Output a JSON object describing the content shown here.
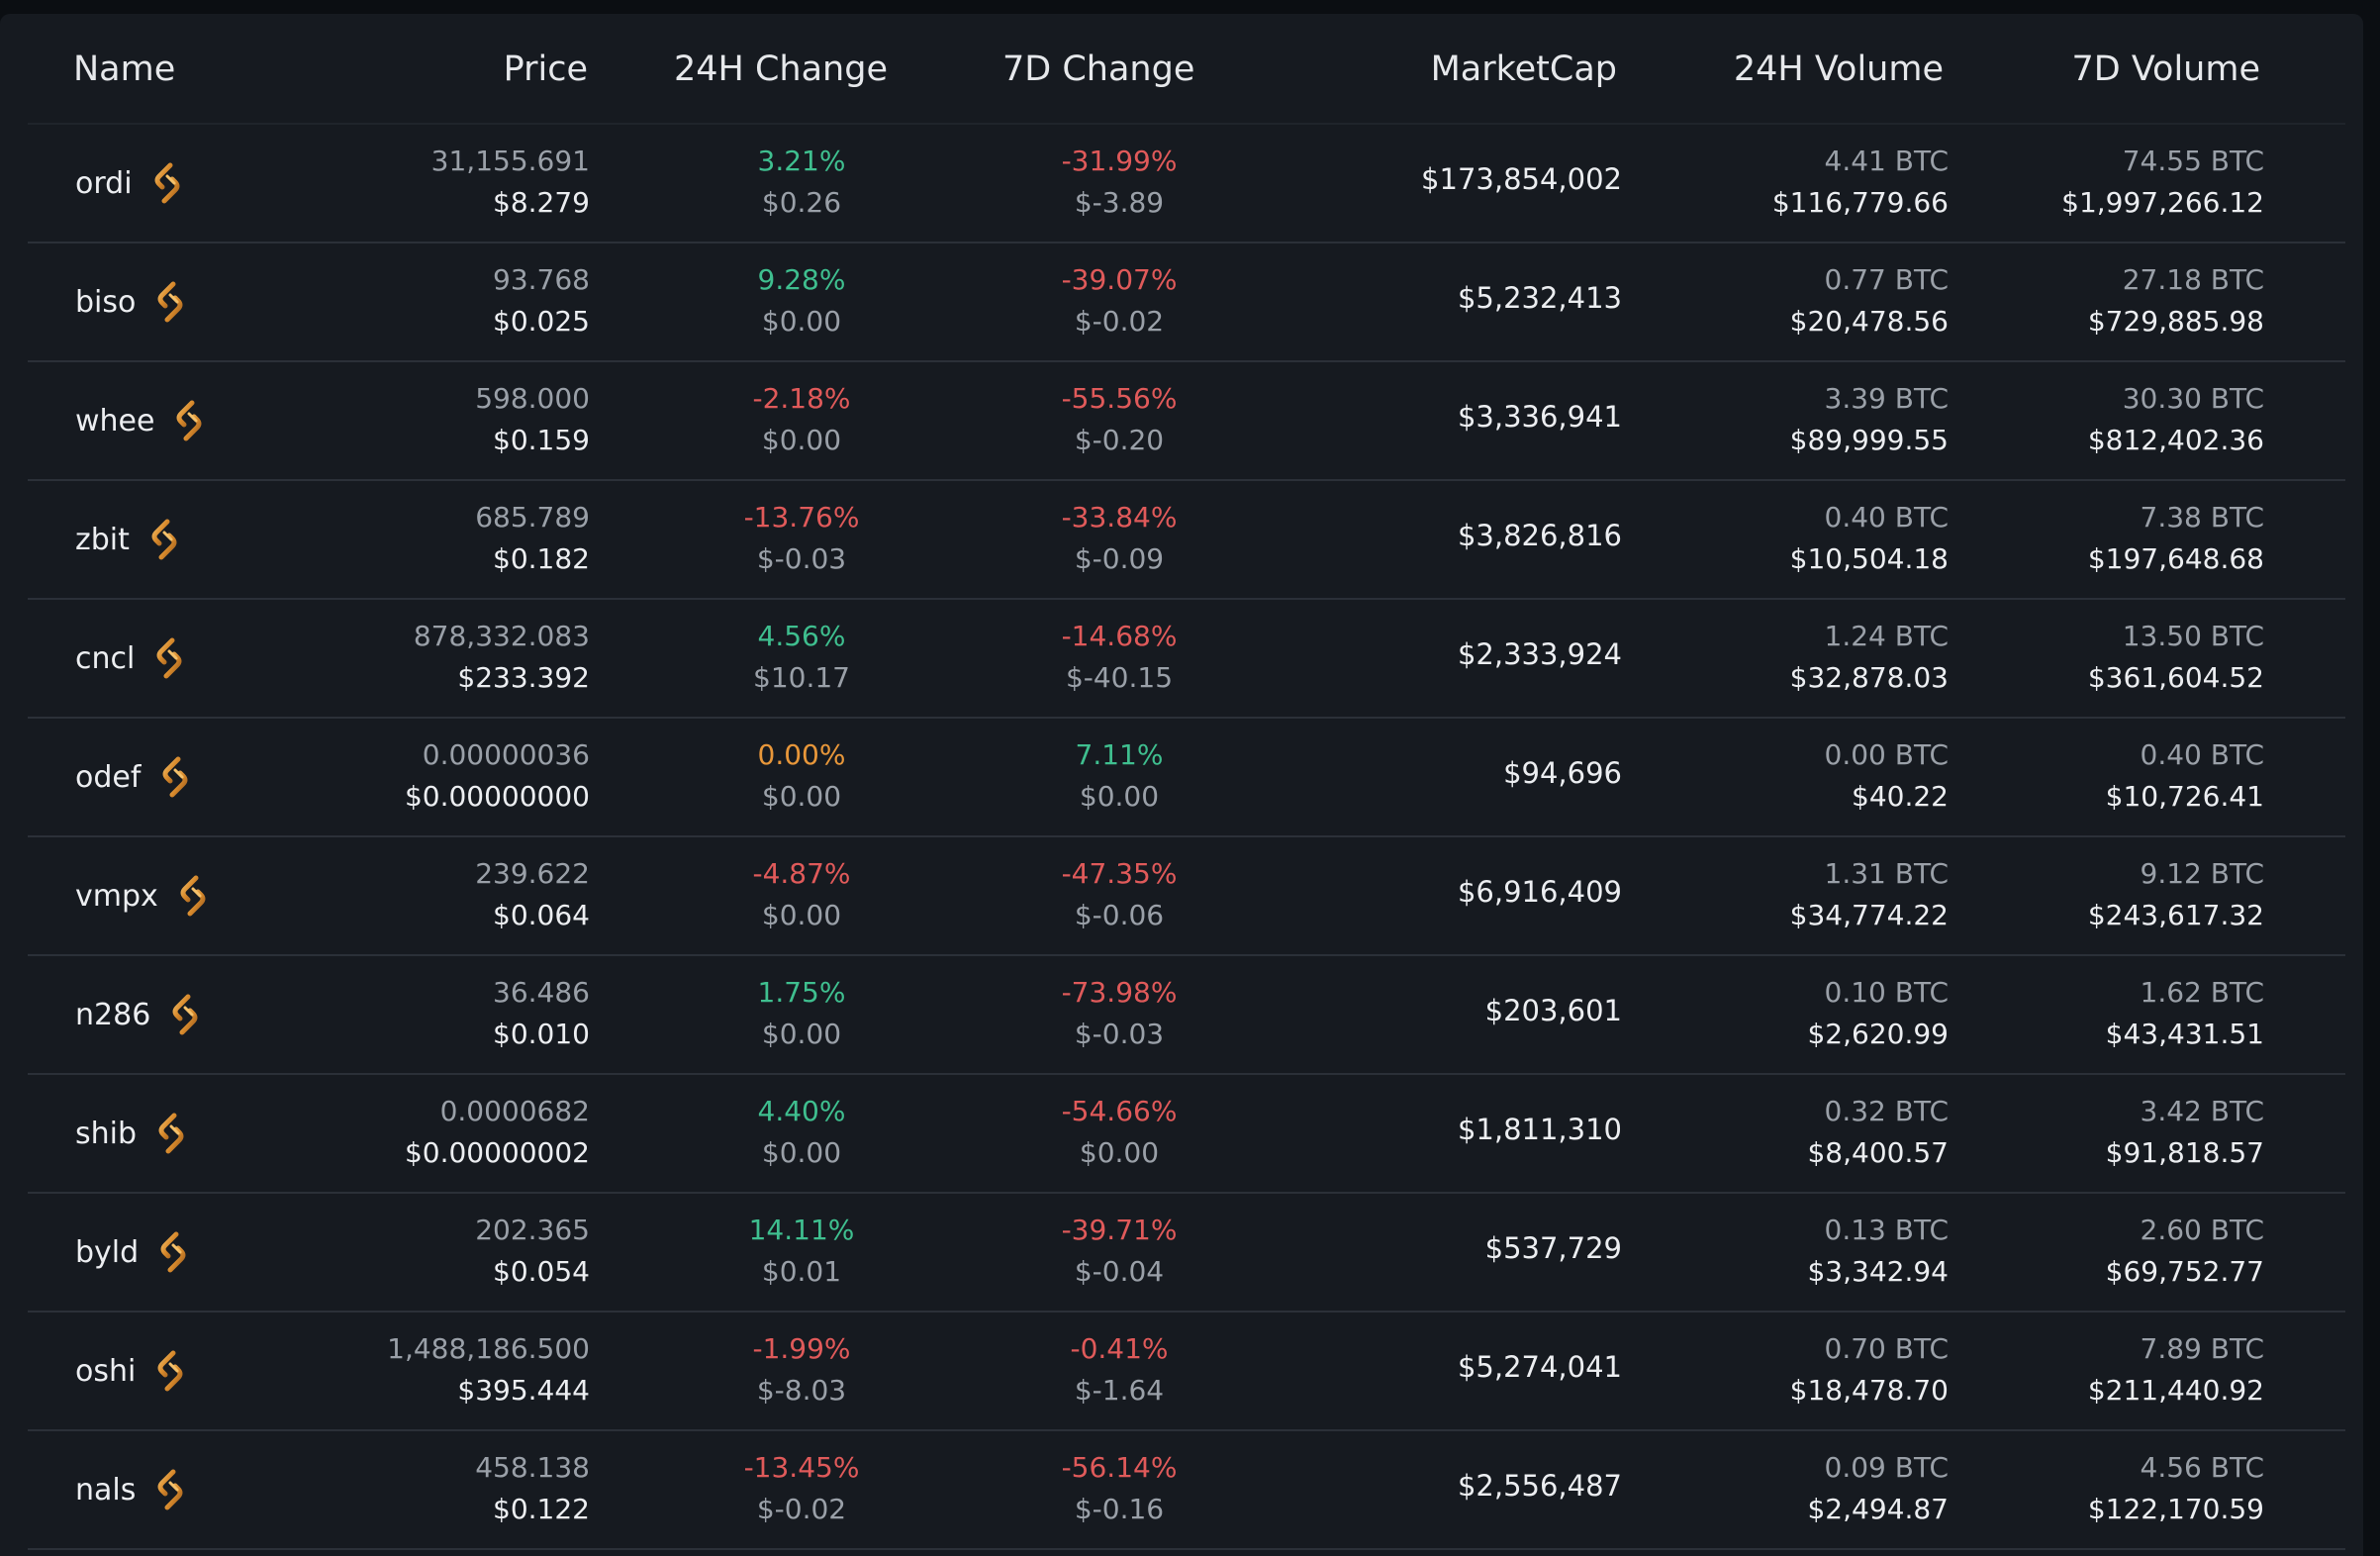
{
  "headers": {
    "name": "Name",
    "price": "Price",
    "change24": "24H Change",
    "change7": "7D Change",
    "marketcap": "MarketCap",
    "volume24": "24H Volume",
    "volume7": "7D Volume"
  },
  "icon": "chain-link-icon",
  "colors": {
    "positive": "#3fbf8f",
    "negative": "#e05a5a",
    "neutral": "#e8973a",
    "icon_gold": "#e8a23a"
  },
  "rows": [
    {
      "name": "ordi",
      "price_sats": "31,155.691",
      "price_usd": "$8.279",
      "ch24_pct": "3.21%",
      "ch24_usd": "$0.26",
      "ch24_dir": "pos",
      "ch7_pct": "-31.99%",
      "ch7_usd": "$-3.89",
      "ch7_dir": "neg",
      "mcap": "$173,854,002",
      "vol24_btc": "4.41 BTC",
      "vol24_usd": "$116,779.66",
      "vol7_btc": "74.55 BTC",
      "vol7_usd": "$1,997,266.12"
    },
    {
      "name": "biso",
      "price_sats": "93.768",
      "price_usd": "$0.025",
      "ch24_pct": "9.28%",
      "ch24_usd": "$0.00",
      "ch24_dir": "pos",
      "ch7_pct": "-39.07%",
      "ch7_usd": "$-0.02",
      "ch7_dir": "neg",
      "mcap": "$5,232,413",
      "vol24_btc": "0.77 BTC",
      "vol24_usd": "$20,478.56",
      "vol7_btc": "27.18 BTC",
      "vol7_usd": "$729,885.98"
    },
    {
      "name": "whee",
      "price_sats": "598.000",
      "price_usd": "$0.159",
      "ch24_pct": "-2.18%",
      "ch24_usd": "$0.00",
      "ch24_dir": "neg",
      "ch7_pct": "-55.56%",
      "ch7_usd": "$-0.20",
      "ch7_dir": "neg",
      "mcap": "$3,336,941",
      "vol24_btc": "3.39 BTC",
      "vol24_usd": "$89,999.55",
      "vol7_btc": "30.30 BTC",
      "vol7_usd": "$812,402.36"
    },
    {
      "name": "zbit",
      "price_sats": "685.789",
      "price_usd": "$0.182",
      "ch24_pct": "-13.76%",
      "ch24_usd": "$-0.03",
      "ch24_dir": "neg",
      "ch7_pct": "-33.84%",
      "ch7_usd": "$-0.09",
      "ch7_dir": "neg",
      "mcap": "$3,826,816",
      "vol24_btc": "0.40 BTC",
      "vol24_usd": "$10,504.18",
      "vol7_btc": "7.38 BTC",
      "vol7_usd": "$197,648.68"
    },
    {
      "name": "cncl",
      "price_sats": "878,332.083",
      "price_usd": "$233.392",
      "ch24_pct": "4.56%",
      "ch24_usd": "$10.17",
      "ch24_dir": "pos",
      "ch7_pct": "-14.68%",
      "ch7_usd": "$-40.15",
      "ch7_dir": "neg",
      "mcap": "$2,333,924",
      "vol24_btc": "1.24 BTC",
      "vol24_usd": "$32,878.03",
      "vol7_btc": "13.50 BTC",
      "vol7_usd": "$361,604.52"
    },
    {
      "name": "odef",
      "price_sats": "0.00000036",
      "price_usd": "$0.00000000",
      "ch24_pct": "0.00%",
      "ch24_usd": "$0.00",
      "ch24_dir": "neu",
      "ch7_pct": "7.11%",
      "ch7_usd": "$0.00",
      "ch7_dir": "pos",
      "mcap": "$94,696",
      "vol24_btc": "0.00 BTC",
      "vol24_usd": "$40.22",
      "vol7_btc": "0.40 BTC",
      "vol7_usd": "$10,726.41"
    },
    {
      "name": "vmpx",
      "price_sats": "239.622",
      "price_usd": "$0.064",
      "ch24_pct": "-4.87%",
      "ch24_usd": "$0.00",
      "ch24_dir": "neg",
      "ch7_pct": "-47.35%",
      "ch7_usd": "$-0.06",
      "ch7_dir": "neg",
      "mcap": "$6,916,409",
      "vol24_btc": "1.31 BTC",
      "vol24_usd": "$34,774.22",
      "vol7_btc": "9.12 BTC",
      "vol7_usd": "$243,617.32"
    },
    {
      "name": "n286",
      "price_sats": "36.486",
      "price_usd": "$0.010",
      "ch24_pct": "1.75%",
      "ch24_usd": "$0.00",
      "ch24_dir": "pos",
      "ch7_pct": "-73.98%",
      "ch7_usd": "$-0.03",
      "ch7_dir": "neg",
      "mcap": "$203,601",
      "vol24_btc": "0.10 BTC",
      "vol24_usd": "$2,620.99",
      "vol7_btc": "1.62 BTC",
      "vol7_usd": "$43,431.51"
    },
    {
      "name": "shib",
      "price_sats": "0.0000682",
      "price_usd": "$0.00000002",
      "ch24_pct": "4.40%",
      "ch24_usd": "$0.00",
      "ch24_dir": "pos",
      "ch7_pct": "-54.66%",
      "ch7_usd": "$0.00",
      "ch7_dir": "neg",
      "mcap": "$1,811,310",
      "vol24_btc": "0.32 BTC",
      "vol24_usd": "$8,400.57",
      "vol7_btc": "3.42 BTC",
      "vol7_usd": "$91,818.57"
    },
    {
      "name": "byld",
      "price_sats": "202.365",
      "price_usd": "$0.054",
      "ch24_pct": "14.11%",
      "ch24_usd": "$0.01",
      "ch24_dir": "pos",
      "ch7_pct": "-39.71%",
      "ch7_usd": "$-0.04",
      "ch7_dir": "neg",
      "mcap": "$537,729",
      "vol24_btc": "0.13 BTC",
      "vol24_usd": "$3,342.94",
      "vol7_btc": "2.60 BTC",
      "vol7_usd": "$69,752.77"
    },
    {
      "name": "oshi",
      "price_sats": "1,488,186.500",
      "price_usd": "$395.444",
      "ch24_pct": "-1.99%",
      "ch24_usd": "$-8.03",
      "ch24_dir": "neg",
      "ch7_pct": "-0.41%",
      "ch7_usd": "$-1.64",
      "ch7_dir": "neg",
      "mcap": "$5,274,041",
      "vol24_btc": "0.70 BTC",
      "vol24_usd": "$18,478.70",
      "vol7_btc": "7.89 BTC",
      "vol7_usd": "$211,440.92"
    },
    {
      "name": "nals",
      "price_sats": "458.138",
      "price_usd": "$0.122",
      "ch24_pct": "-13.45%",
      "ch24_usd": "$-0.02",
      "ch24_dir": "neg",
      "ch7_pct": "-56.14%",
      "ch7_usd": "$-0.16",
      "ch7_dir": "neg",
      "mcap": "$2,556,487",
      "vol24_btc": "0.09 BTC",
      "vol24_usd": "$2,494.87",
      "vol7_btc": "4.56 BTC",
      "vol7_usd": "$122,170.59"
    }
  ]
}
